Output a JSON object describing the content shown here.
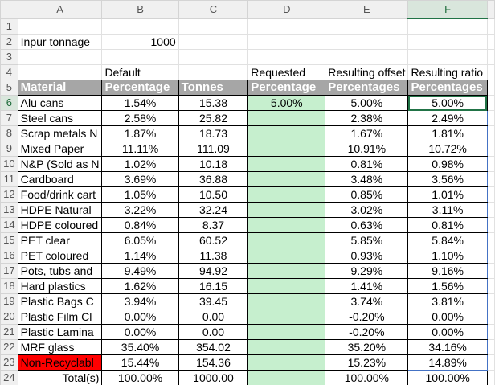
{
  "columns": [
    "A",
    "B",
    "C",
    "D",
    "E",
    "F"
  ],
  "input_label": "Inpur tonnage",
  "input_value": "1000",
  "row4": {
    "b": "Default",
    "d": "Requested",
    "e": "Resulting offset",
    "f": "Resulting ratio"
  },
  "headers": [
    "Material",
    "Percentage",
    "Tonnes",
    "Percentage",
    "Percentages",
    "Percentages"
  ],
  "rows": [
    {
      "material": "Alu cans",
      "pct": "1.54%",
      "tonnes": "15.38",
      "req": "5.00%",
      "offset": "5.00%",
      "ratio": "5.00%"
    },
    {
      "material": "Steel cans",
      "pct": "2.58%",
      "tonnes": "25.82",
      "req": "",
      "offset": "2.38%",
      "ratio": "2.49%"
    },
    {
      "material": "Scrap metals N",
      "pct": "1.87%",
      "tonnes": "18.73",
      "req": "",
      "offset": "1.67%",
      "ratio": "1.81%"
    },
    {
      "material": "Mixed Paper",
      "pct": "11.11%",
      "tonnes": "111.09",
      "req": "",
      "offset": "10.91%",
      "ratio": "10.72%"
    },
    {
      "material": "N&P (Sold as N",
      "pct": "1.02%",
      "tonnes": "10.18",
      "req": "",
      "offset": "0.81%",
      "ratio": "0.98%"
    },
    {
      "material": "Cardboard",
      "pct": "3.69%",
      "tonnes": "36.88",
      "req": "",
      "offset": "3.48%",
      "ratio": "3.56%"
    },
    {
      "material": "Food/drink cart",
      "pct": "1.05%",
      "tonnes": "10.50",
      "req": "",
      "offset": "0.85%",
      "ratio": "1.01%"
    },
    {
      "material": "HDPE Natural",
      "pct": "3.22%",
      "tonnes": "32.24",
      "req": "",
      "offset": "3.02%",
      "ratio": "3.11%"
    },
    {
      "material": "HDPE coloured",
      "pct": "0.84%",
      "tonnes": "8.37",
      "req": "",
      "offset": "0.63%",
      "ratio": "0.81%"
    },
    {
      "material": "PET clear",
      "pct": "6.05%",
      "tonnes": "60.52",
      "req": "",
      "offset": "5.85%",
      "ratio": "5.84%"
    },
    {
      "material": "PET coloured",
      "pct": "1.14%",
      "tonnes": "11.38",
      "req": "",
      "offset": "0.93%",
      "ratio": "1.10%"
    },
    {
      "material": "Pots, tubs and",
      "pct": "9.49%",
      "tonnes": "94.92",
      "req": "",
      "offset": "9.29%",
      "ratio": "9.16%"
    },
    {
      "material": "Hard plastics",
      "pct": "1.62%",
      "tonnes": "16.15",
      "req": "",
      "offset": "1.41%",
      "ratio": "1.56%"
    },
    {
      "material": "Plastic Bags C",
      "pct": "3.94%",
      "tonnes": "39.45",
      "req": "",
      "offset": "3.74%",
      "ratio": "3.81%"
    },
    {
      "material": "Plastic Film Cl",
      "pct": "0.00%",
      "tonnes": "0.00",
      "req": "",
      "offset": "-0.20%",
      "ratio": "0.00%"
    },
    {
      "material": "Plastic Lamina",
      "pct": "0.00%",
      "tonnes": "0.00",
      "req": "",
      "offset": "-0.20%",
      "ratio": "0.00%"
    },
    {
      "material": "MRF glass",
      "pct": "35.40%",
      "tonnes": "354.02",
      "req": "",
      "offset": "35.20%",
      "ratio": "34.16%"
    },
    {
      "material": "Non-Recyclabl",
      "pct": "15.44%",
      "tonnes": "154.36",
      "req": "",
      "offset": "15.23%",
      "ratio": "14.89%",
      "highlight": "#ff0000"
    },
    {
      "material": "Total(s)",
      "pct": "100.00%",
      "tonnes": "1000.00",
      "req": "",
      "offset": "100.00%",
      "ratio": "100.00%",
      "total": true
    }
  ],
  "colors": {
    "header_fill": "#a6a6a6",
    "requested_fill": "#c6efce",
    "selection": "#217346"
  }
}
